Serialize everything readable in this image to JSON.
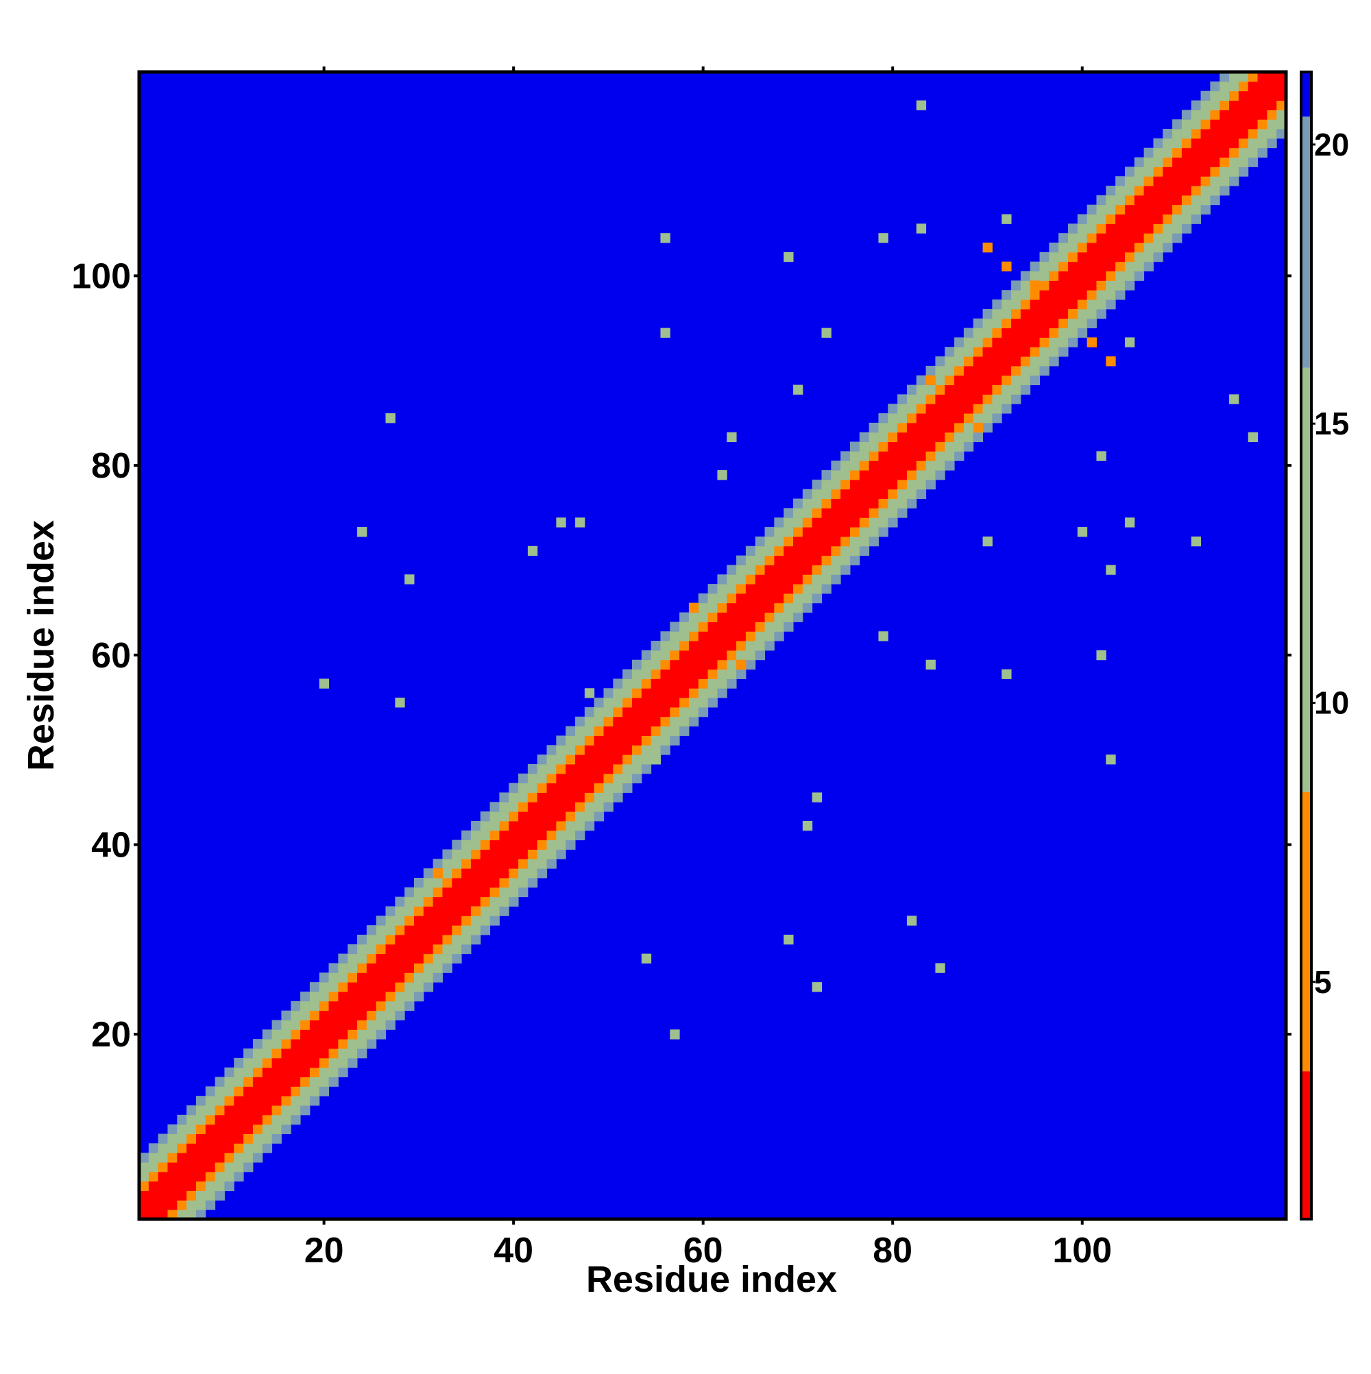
{
  "chart_data": {
    "type": "heatmap",
    "xlabel": "Residue index",
    "ylabel": "Residue index",
    "xlim": [
      0.5,
      121.5
    ],
    "ylim": [
      0.5,
      121.5
    ],
    "xticks": [
      20,
      40,
      60,
      80,
      100
    ],
    "yticks": [
      20,
      40,
      60,
      80,
      100
    ],
    "clim": [
      0.75,
      21.3
    ],
    "cticks": [
      5,
      10,
      15,
      20
    ],
    "colorscale": {
      "values": [
        0.75,
        3.4,
        8.4,
        16,
        20.5
      ],
      "colors": [
        "#ff0000",
        "#ff8c00",
        "#9fbf8f",
        "#7a9bb5",
        "#0000ee"
      ]
    },
    "residues": 121,
    "background": 21,
    "diagonal_profile": [
      0,
      3.0,
      3.3,
      6.0,
      10.5,
      12,
      17
    ],
    "contacts": {
      "x": [
        83,
        84,
        89,
        59,
        64,
        32,
        36,
        48,
        55,
        62,
        90,
        79,
        84,
        92,
        70,
        73,
        56,
        56,
        69,
        79,
        83,
        92,
        29,
        24,
        27,
        69,
        72,
        82,
        85,
        20,
        28,
        57,
        54,
        72,
        71,
        103,
        102,
        103,
        102,
        105,
        112,
        116,
        118,
        105,
        101,
        103,
        99,
        90,
        92,
        95,
        100,
        63,
        47,
        45,
        42
      ],
      "y": [
        118,
        89,
        84,
        65,
        59,
        37,
        33,
        56,
        49,
        79,
        72,
        62,
        59,
        58,
        88,
        94,
        94,
        104,
        102,
        104,
        105,
        106,
        68,
        73,
        85,
        30,
        25,
        32,
        27,
        57,
        55,
        20,
        28,
        45,
        42,
        49,
        60,
        69,
        81,
        74,
        72,
        87,
        83,
        93,
        93,
        91,
        96,
        103,
        101,
        99,
        73,
        83,
        74,
        74,
        71
      ],
      "values": [
        12,
        6,
        6,
        6,
        6,
        6,
        6,
        11,
        11,
        12,
        11,
        12,
        12,
        12,
        11,
        12,
        12,
        13,
        12,
        12,
        13,
        12,
        12,
        13,
        12,
        12,
        13,
        12,
        13,
        12,
        12,
        12,
        13,
        12,
        13,
        12,
        12,
        12,
        12,
        12,
        12,
        12,
        12,
        12,
        6,
        6,
        6,
        6,
        6,
        6,
        12,
        12,
        12,
        13,
        12
      ]
    }
  }
}
